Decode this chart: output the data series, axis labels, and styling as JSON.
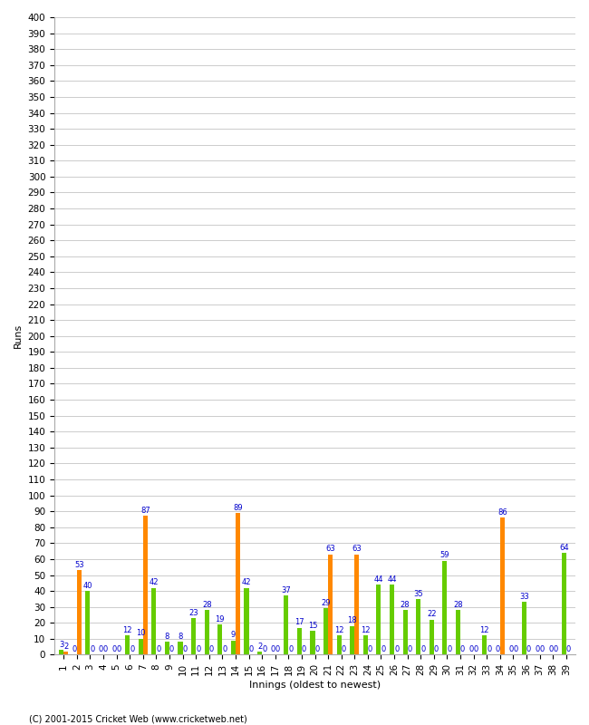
{
  "xlabel": "Innings (oldest to newest)",
  "ylabel": "Runs",
  "innings": [
    1,
    2,
    3,
    4,
    5,
    6,
    7,
    8,
    9,
    10,
    11,
    12,
    13,
    14,
    15,
    16,
    17,
    18,
    19,
    20,
    21,
    22,
    23,
    24,
    25,
    26,
    27,
    28,
    29,
    30,
    31,
    32,
    33,
    34,
    35,
    36,
    37,
    38,
    39
  ],
  "green_values": [
    3,
    0,
    40,
    0,
    0,
    12,
    10,
    42,
    8,
    8,
    23,
    28,
    19,
    9,
    42,
    2,
    0,
    37,
    17,
    15,
    29,
    12,
    18,
    12,
    44,
    44,
    28,
    35,
    22,
    59,
    28,
    0,
    12,
    0,
    0,
    33,
    0,
    0,
    64
  ],
  "orange_values": [
    2,
    53,
    0,
    0,
    0,
    0,
    87,
    0,
    0,
    0,
    0,
    0,
    0,
    89,
    0,
    0,
    0,
    0,
    0,
    0,
    63,
    0,
    63,
    0,
    0,
    0,
    0,
    0,
    0,
    0,
    0,
    0,
    0,
    86,
    0,
    0,
    0,
    0,
    0
  ],
  "green_show_zero": [
    false,
    true,
    false,
    true,
    true,
    false,
    false,
    false,
    false,
    false,
    false,
    false,
    false,
    false,
    false,
    false,
    true,
    false,
    false,
    false,
    false,
    false,
    false,
    false,
    false,
    false,
    false,
    false,
    false,
    false,
    false,
    true,
    false,
    true,
    true,
    false,
    true,
    true,
    false
  ],
  "orange_show_zero": [
    false,
    false,
    true,
    true,
    true,
    true,
    false,
    true,
    true,
    true,
    true,
    true,
    true,
    false,
    true,
    true,
    true,
    true,
    true,
    true,
    false,
    true,
    false,
    true,
    true,
    true,
    true,
    true,
    true,
    true,
    true,
    true,
    true,
    false,
    true,
    true,
    true,
    true,
    true
  ],
  "green_color": "#66cc00",
  "orange_color": "#ff8800",
  "ylim": [
    0,
    400
  ],
  "ytick_step": 10,
  "background_color": "#ffffff",
  "grid_color": "#cccccc",
  "label_color": "#0000cc",
  "footer": "(C) 2001-2015 Cricket Web (www.cricketweb.net)"
}
